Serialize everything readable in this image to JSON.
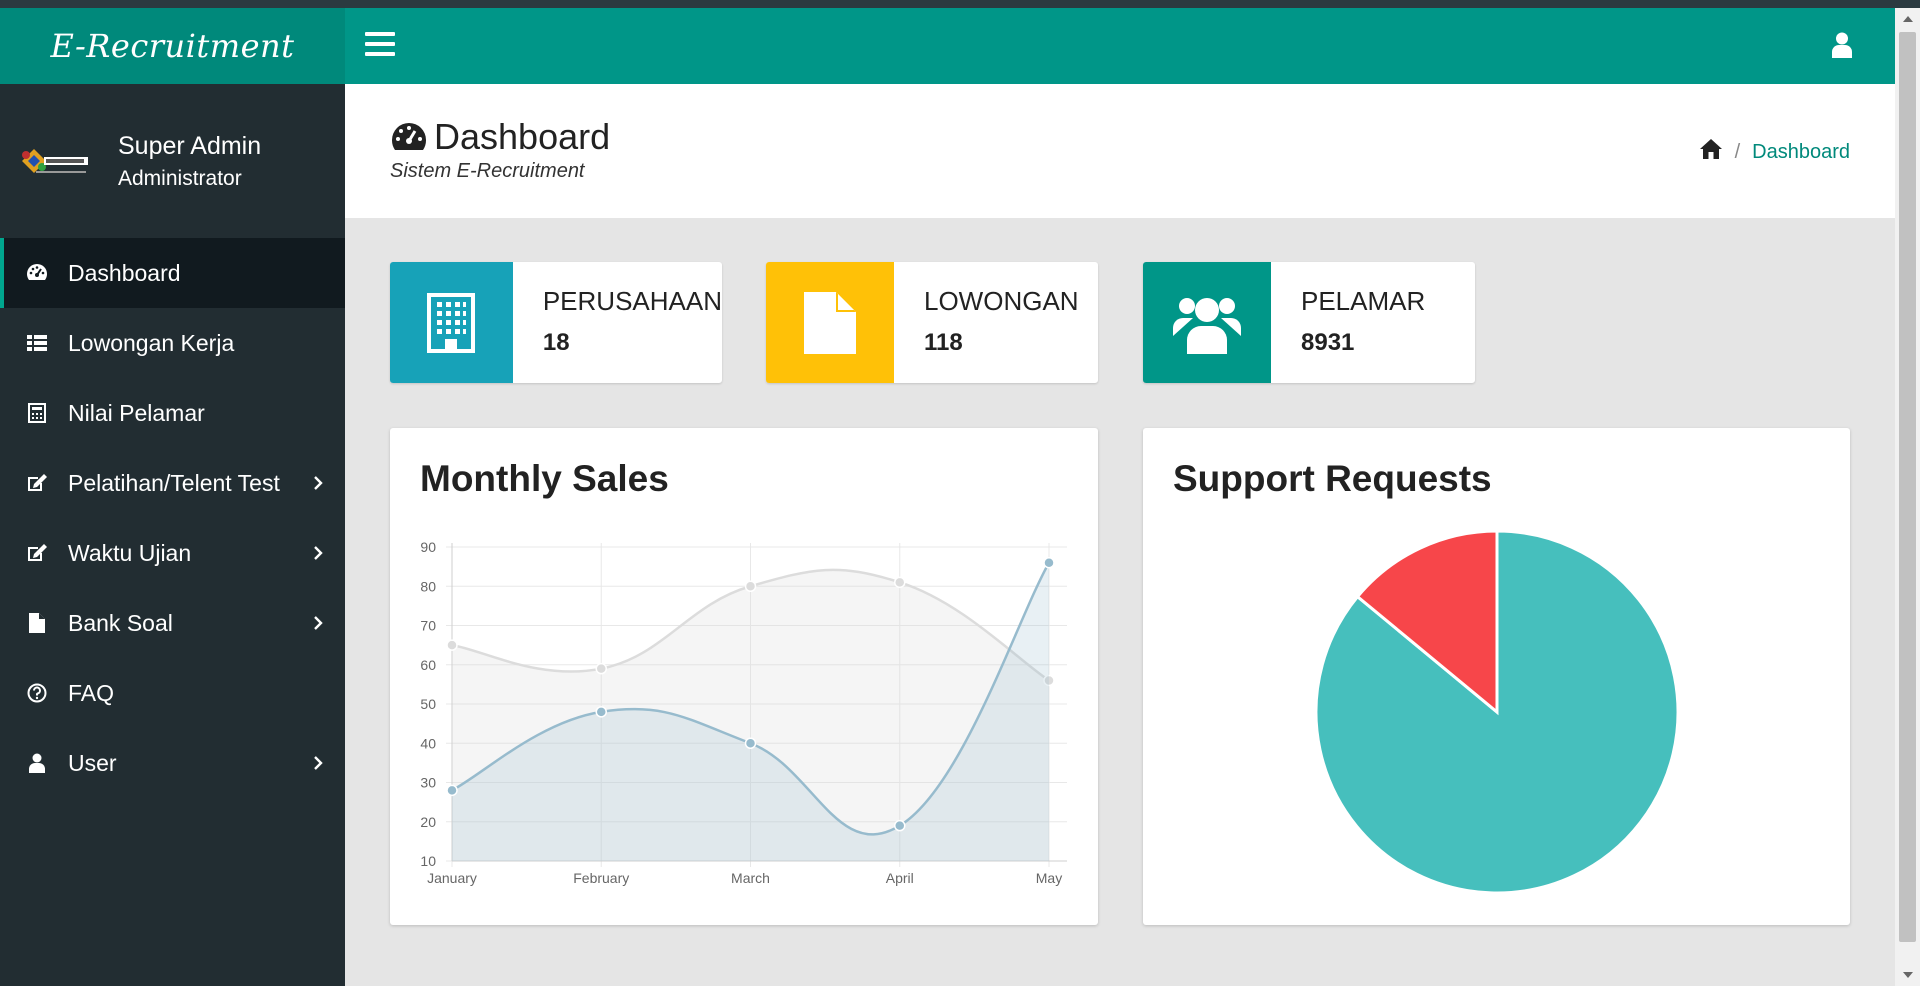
{
  "brand": {
    "title": "E-Recruitment"
  },
  "user": {
    "name": "Super Admin",
    "role": "Administrator"
  },
  "sidebar": {
    "items": [
      {
        "label": "Dashboard",
        "icon": "dashboard-icon",
        "active": true,
        "chevron": false
      },
      {
        "label": "Lowongan Kerja",
        "icon": "list-icon",
        "active": false,
        "chevron": false
      },
      {
        "label": "Nilai Pelamar",
        "icon": "calculator-icon",
        "active": false,
        "chevron": false
      },
      {
        "label": "Pelatihan/Telent Test",
        "icon": "edit-icon",
        "active": false,
        "chevron": true
      },
      {
        "label": "Waktu Ujian",
        "icon": "edit-icon",
        "active": false,
        "chevron": true
      },
      {
        "label": "Bank Soal",
        "icon": "file-icon",
        "active": false,
        "chevron": true
      },
      {
        "label": "FAQ",
        "icon": "question-circle-icon",
        "active": false,
        "chevron": false
      },
      {
        "label": "User",
        "icon": "user-icon",
        "active": false,
        "chevron": true
      }
    ]
  },
  "header": {
    "title": "Dashboard",
    "subtitle": "Sistem E-Recruitment",
    "breadcrumb": {
      "separator": "/",
      "current": "Dashboard"
    }
  },
  "stats": [
    {
      "label": "PERUSAHAAN",
      "value": "18",
      "icon": "building-icon",
      "color": "#17a2b8"
    },
    {
      "label": "LOWONGAN",
      "value": "118",
      "icon": "file-icon",
      "color": "#ffc107"
    },
    {
      "label": "PELAMAR",
      "value": "8931",
      "icon": "users-icon",
      "color": "#009688"
    }
  ],
  "charts": {
    "sales_title": "Monthly Sales",
    "support_title": "Support Requests"
  },
  "chart_data": [
    {
      "type": "line",
      "title": "Monthly Sales",
      "categories": [
        "January",
        "February",
        "March",
        "April",
        "May"
      ],
      "series": [
        {
          "values": [
            65,
            59,
            80,
            81,
            56
          ],
          "color": "#dcdcdc"
        },
        {
          "values": [
            28,
            48,
            40,
            19,
            86
          ],
          "color": "#97bbcd"
        }
      ],
      "ylim": [
        10,
        90
      ],
      "yticks": [
        10,
        20,
        30,
        40,
        50,
        60,
        70,
        80,
        90
      ],
      "grid": true
    },
    {
      "type": "pie",
      "title": "Support Requests",
      "slices": [
        {
          "value": 86,
          "color": "#46bfbd"
        },
        {
          "value": 14,
          "color": "#f7464a"
        }
      ]
    }
  ]
}
